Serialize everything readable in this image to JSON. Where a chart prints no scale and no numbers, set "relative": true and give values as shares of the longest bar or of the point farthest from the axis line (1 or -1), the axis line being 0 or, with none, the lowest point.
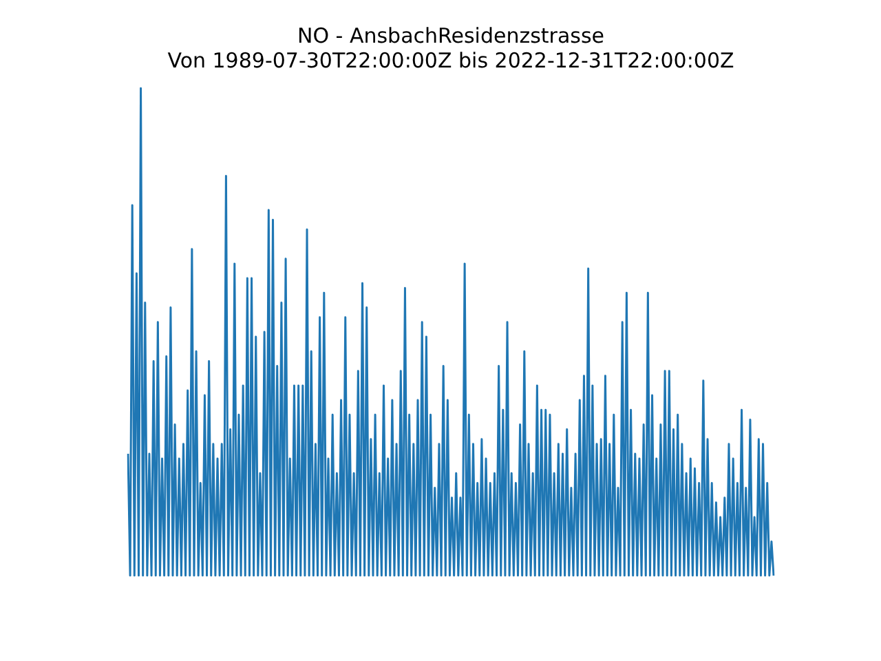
{
  "chart_data": {
    "type": "line",
    "title": "NO - AnsbachResidenzstrasse",
    "subtitle": "Von 1989-07-30T22:00:00Z bis 2022-12-31T22:00:00Z",
    "relative": true,
    "legend": false,
    "marker": "none",
    "categories": [
      null,
      null,
      null,
      null,
      null,
      null,
      null,
      null,
      null,
      null,
      null,
      null,
      null,
      null,
      null,
      null,
      null,
      null,
      null,
      null,
      null,
      null,
      null,
      null,
      null,
      null,
      null,
      null,
      null,
      null,
      null,
      null,
      null,
      null,
      null,
      null,
      null,
      null,
      null,
      null,
      null,
      null,
      null,
      null,
      null,
      null,
      null,
      null,
      null,
      null,
      null,
      null,
      null,
      null,
      null,
      null,
      null,
      null,
      null,
      null,
      null,
      null,
      null,
      null,
      null,
      null,
      null,
      null,
      null,
      null,
      null,
      null,
      null,
      null,
      null,
      null,
      null,
      null,
      null,
      null,
      null,
      null,
      null,
      null,
      null,
      null,
      null,
      null,
      null,
      null,
      null,
      null,
      null,
      null,
      null,
      null,
      null,
      null,
      null,
      null,
      null,
      null,
      null,
      null,
      null,
      null,
      null,
      null,
      null,
      null,
      null,
      null,
      null,
      null,
      null,
      null,
      null,
      null,
      null,
      null,
      null,
      null,
      null,
      null,
      null,
      null,
      null,
      null,
      null,
      null,
      null,
      null,
      null,
      null,
      null,
      null,
      null,
      null,
      null,
      null,
      null,
      null,
      null,
      null,
      null,
      null,
      null,
      null,
      null,
      null,
      null,
      null,
      null,
      null,
      null,
      null,
      null,
      null,
      null,
      null,
      null,
      null,
      null,
      null,
      null,
      null,
      null,
      null,
      null,
      null,
      null,
      null,
      null,
      null,
      null,
      null,
      null,
      null,
      null,
      null,
      null,
      null,
      null,
      null,
      null,
      null,
      null,
      null,
      null,
      null,
      null,
      null,
      null,
      null,
      null,
      null,
      null,
      null,
      null,
      null,
      null,
      null,
      null,
      null,
      null,
      null,
      null,
      null,
      null,
      null,
      null,
      null,
      null,
      null,
      null,
      null,
      null,
      null,
      null,
      null,
      null,
      null,
      null,
      null,
      null,
      null,
      null,
      null,
      null,
      null,
      null,
      null,
      null,
      null,
      null,
      null,
      null,
      null,
      null,
      null,
      null,
      null,
      null,
      null,
      null,
      null,
      null,
      null,
      null,
      null,
      null,
      null,
      null,
      null,
      null,
      null,
      null,
      null,
      null,
      null,
      null,
      null,
      null,
      null,
      null,
      null,
      null,
      null,
      null,
      null,
      null,
      null,
      null,
      null,
      null,
      null,
      null,
      null,
      null,
      null,
      null,
      null,
      null,
      null,
      null,
      null,
      null,
      null,
      null,
      null,
      null,
      null,
      null,
      null,
      null,
      null,
      null,
      null,
      null,
      null,
      null,
      null,
      null,
      null
    ],
    "series": [
      {
        "color": "#1f77b4",
        "values": [
          0.25,
          0,
          0.76,
          0,
          0.62,
          0,
          1,
          0,
          0.56,
          0,
          0.25,
          0,
          0.44,
          0,
          0.52,
          0,
          0.24,
          0,
          0.45,
          0,
          0.55,
          0,
          0.31,
          0,
          0.24,
          0,
          0.27,
          0,
          0.38,
          0,
          0.67,
          0,
          0.46,
          0,
          0.19,
          0,
          0.37,
          0,
          0.44,
          0,
          0.27,
          0,
          0.24,
          0,
          0.27,
          0,
          0.82,
          0,
          0.3,
          0,
          0.64,
          0,
          0.33,
          0,
          0.39,
          0,
          0.61,
          0,
          0.61,
          0,
          0.49,
          0,
          0.21,
          0,
          0.5,
          0,
          0.75,
          0,
          0.73,
          0,
          0.43,
          0,
          0.56,
          0,
          0.65,
          0,
          0.24,
          0,
          0.39,
          0,
          0.39,
          0,
          0.39,
          0,
          0.71,
          0,
          0.46,
          0,
          0.27,
          0,
          0.53,
          0,
          0.58,
          0,
          0.24,
          0,
          0.33,
          0,
          0.21,
          0,
          0.36,
          0,
          0.53,
          0,
          0.33,
          0,
          0.21,
          0,
          0.42,
          0,
          0.6,
          0,
          0.55,
          0,
          0.28,
          0,
          0.33,
          0,
          0.21,
          0,
          0.39,
          0,
          0.24,
          0,
          0.36,
          0,
          0.27,
          0,
          0.42,
          0,
          0.59,
          0,
          0.33,
          0,
          0.27,
          0,
          0.36,
          0,
          0.52,
          0,
          0.49,
          0,
          0.33,
          0,
          0.18,
          0,
          0.27,
          0,
          0.43,
          0,
          0.36,
          0,
          0.16,
          0,
          0.21,
          0,
          0.16,
          0,
          0.64,
          0,
          0.33,
          0,
          0.27,
          0,
          0.19,
          0,
          0.28,
          0,
          0.24,
          0,
          0.19,
          0,
          0.21,
          0,
          0.43,
          0,
          0.34,
          0,
          0.52,
          0,
          0.21,
          0,
          0.19,
          0,
          0.31,
          0,
          0.46,
          0,
          0.27,
          0,
          0.21,
          0,
          0.39,
          0,
          0.34,
          0,
          0.34,
          0,
          0.33,
          0,
          0.21,
          0,
          0.27,
          0,
          0.25,
          0,
          0.3,
          0,
          0.18,
          0,
          0.25,
          0,
          0.36,
          0,
          0.41,
          0,
          0.63,
          0,
          0.39,
          0,
          0.27,
          0,
          0.28,
          0,
          0.41,
          0,
          0.27,
          0,
          0.33,
          0,
          0.18,
          0,
          0.52,
          0,
          0.58,
          0,
          0.34,
          0,
          0.25,
          0,
          0.24,
          0,
          0.31,
          0,
          0.58,
          0,
          0.37,
          0,
          0.24,
          0,
          0.31,
          0,
          0.42,
          0,
          0.42,
          0,
          0.3,
          0,
          0.33,
          0,
          0.27,
          0,
          0.21,
          0,
          0.24,
          0,
          0.22,
          0,
          0.19,
          0,
          0.4,
          0,
          0.28,
          0,
          0.19,
          0,
          0.15,
          0,
          0.12,
          0,
          0.16,
          0,
          0.27,
          0,
          0.24,
          0,
          0.19,
          0,
          0.34,
          0,
          0.18,
          0,
          0.32,
          0,
          0.12,
          0,
          0.28,
          0,
          0.27,
          0,
          0.19,
          0,
          0.07,
          0
        ]
      }
    ]
  }
}
